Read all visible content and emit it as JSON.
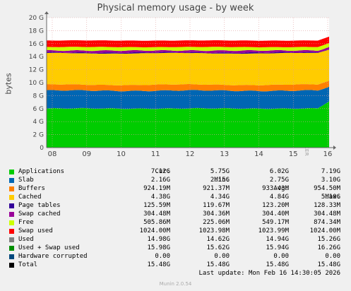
{
  "chart_data": {
    "type": "area",
    "title": "Physical memory usage - by week",
    "ylabel": "bytes",
    "ylim": [
      0,
      20
    ],
    "y_unit": "G",
    "yticks": [
      "0",
      "2 G",
      "4 G",
      "6 G",
      "8 G",
      "10 G",
      "12 G",
      "14 G",
      "16 G",
      "18 G",
      "20 G"
    ],
    "x_tick_labels": [
      "08",
      "09",
      "10",
      "11",
      "12",
      "13",
      "14",
      "15",
      "16"
    ],
    "grid": true,
    "stacked": true,
    "series": [
      {
        "name": "Applications",
        "color": "#00cc00",
        "typical": 6.02
      },
      {
        "name": "Slab",
        "color": "#0066b3",
        "typical": 2.75
      },
      {
        "name": "Buffers",
        "color": "#ff8000",
        "typical": 0.91
      },
      {
        "name": "Cached",
        "color": "#ffcc00",
        "typical": 4.84
      },
      {
        "name": "Page tables",
        "color": "#330099",
        "typical": 0.12
      },
      {
        "name": "Swap cached",
        "color": "#990099",
        "typical": 0.3
      },
      {
        "name": "Free",
        "color": "#ccff00",
        "typical": 0.54
      },
      {
        "name": "Swap used",
        "color": "#ff0000",
        "typical": 1.0
      }
    ]
  },
  "side_label": "RRDTOOL / TOBI OETIKER",
  "legend": {
    "headers": {
      "cur": "Cur:",
      "min": "Min:",
      "avg": "Avg:",
      "max": "Max:"
    },
    "rows": [
      {
        "name": "Applications",
        "color": "#00cc00",
        "cur": "7.12G",
        "min": "5.75G",
        "avg": "6.02G",
        "max": "7.19G"
      },
      {
        "name": "Slab",
        "color": "#0066b3",
        "cur": "2.16G",
        "min": "2.15G",
        "avg": "2.75G",
        "max": "3.10G"
      },
      {
        "name": "Buffers",
        "color": "#ff8000",
        "cur": "924.19M",
        "min": "921.37M",
        "avg": "933.43M",
        "max": "954.50M"
      },
      {
        "name": "Cached",
        "color": "#ffcc00",
        "cur": "4.38G",
        "min": "4.34G",
        "avg": "4.84G",
        "max": "5.10G"
      },
      {
        "name": "Page tables",
        "color": "#330099",
        "cur": "125.59M",
        "min": "119.67M",
        "avg": "123.20M",
        "max": "128.33M"
      },
      {
        "name": "Swap cached",
        "color": "#990099",
        "cur": "304.48M",
        "min": "304.36M",
        "avg": "304.40M",
        "max": "304.48M"
      },
      {
        "name": "Free",
        "color": "#ccff00",
        "cur": "505.86M",
        "min": "225.06M",
        "avg": "549.17M",
        "max": "874.34M"
      },
      {
        "name": "Swap used",
        "color": "#ff0000",
        "cur": "1024.00M",
        "min": "1023.98M",
        "avg": "1023.99M",
        "max": "1024.00M"
      },
      {
        "name": "Used",
        "color": "#808080",
        "cur": "14.98G",
        "min": "14.62G",
        "avg": "14.94G",
        "max": "15.26G"
      },
      {
        "name": "Used + Swap used",
        "color": "#008f00",
        "cur": "15.98G",
        "min": "15.62G",
        "avg": "15.94G",
        "max": "16.26G"
      },
      {
        "name": "Hardware corrupted",
        "color": "#00487d",
        "cur": "0.00",
        "min": "0.00",
        "avg": "0.00",
        "max": "0.00"
      },
      {
        "name": "Total",
        "color": "#000000",
        "cur": "15.48G",
        "min": "15.48G",
        "avg": "15.48G",
        "max": "15.48G"
      }
    ]
  },
  "last_update": "Last update: Mon Feb 16 14:30:05 2026",
  "munin_version": "Munin 2.0.54"
}
